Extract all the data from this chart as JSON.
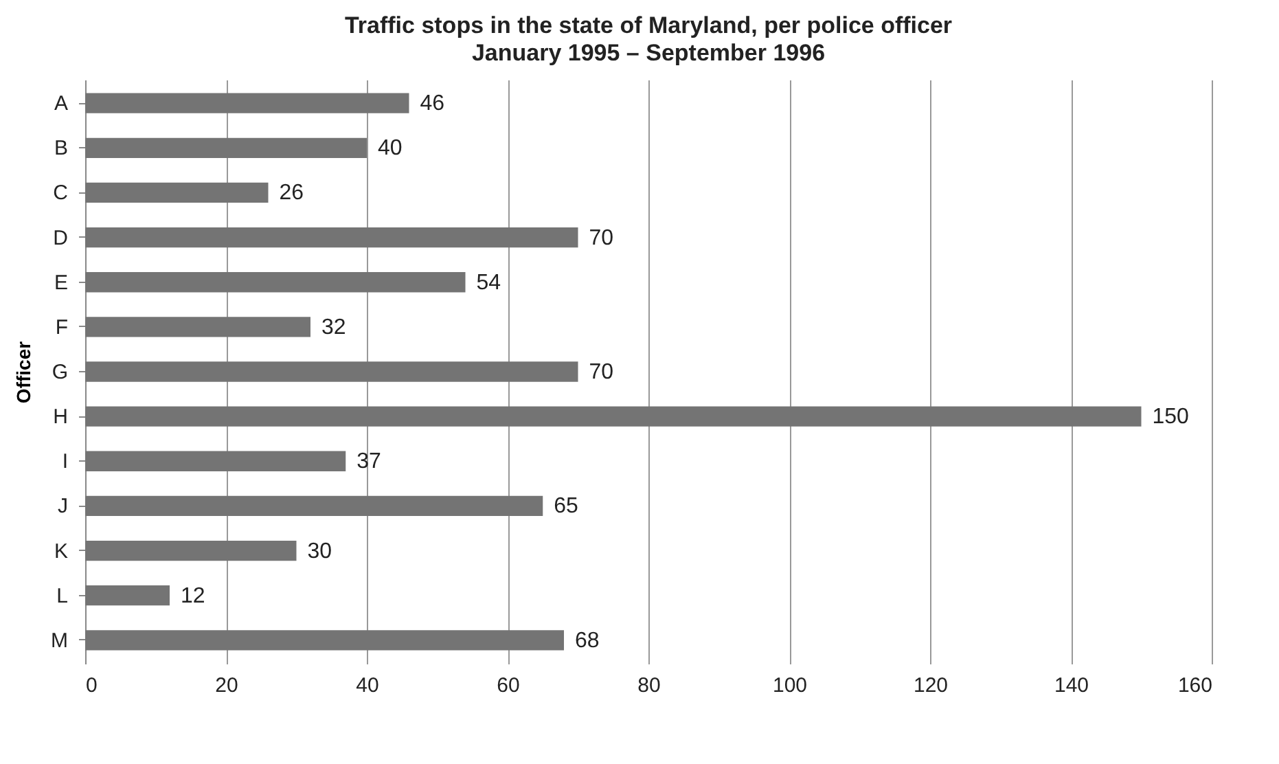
{
  "chart_data": {
    "type": "bar",
    "orientation": "horizontal",
    "title": "Traffic stops in the state of Maryland, per police officer",
    "subtitle": "January 1995 – September 1996",
    "ylabel": "Officer",
    "categories": [
      "A",
      "B",
      "C",
      "D",
      "E",
      "F",
      "G",
      "H",
      "I",
      "J",
      "K",
      "L",
      "M"
    ],
    "values": [
      46,
      40,
      26,
      70,
      54,
      32,
      70,
      150,
      37,
      65,
      30,
      12,
      68
    ],
    "color": "#747474",
    "xlim": [
      0,
      160
    ],
    "xticks": [
      0,
      20,
      40,
      60,
      80,
      100,
      120,
      140,
      160
    ],
    "grid": "x",
    "data_labels": true
  }
}
